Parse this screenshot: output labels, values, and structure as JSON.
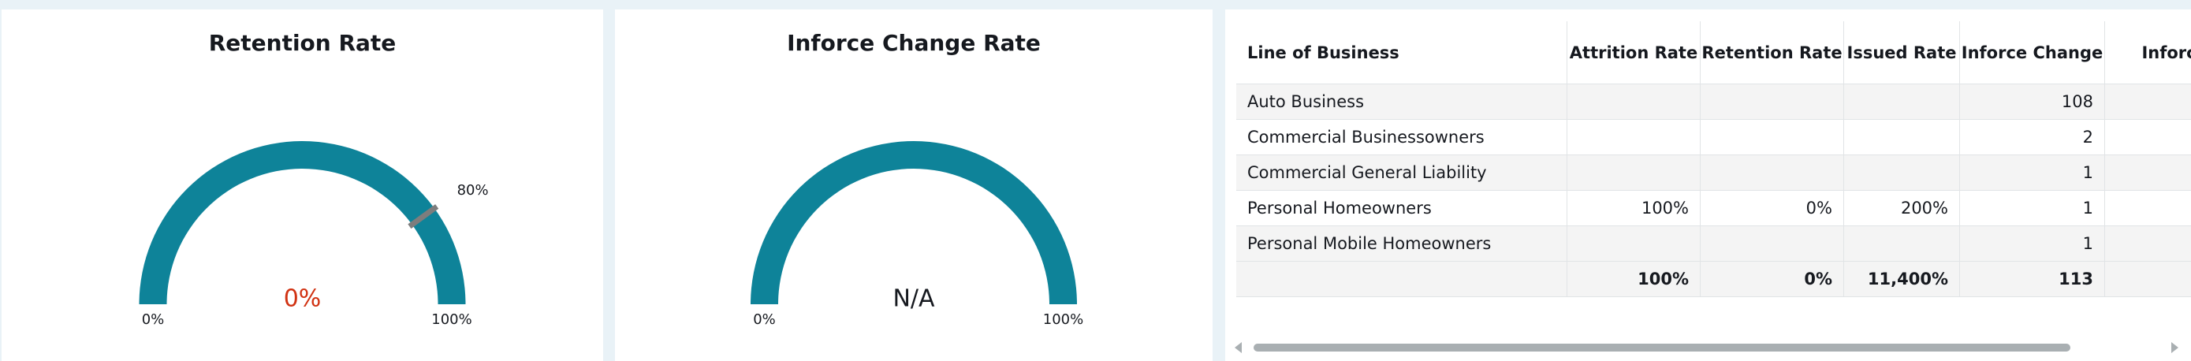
{
  "chart_data": [
    {
      "type": "gauge",
      "title": "Retention Rate",
      "value": 0,
      "value_label": "0%",
      "value_color": "#d13212",
      "ylim": [
        0,
        100
      ],
      "yticks": [
        {
          "value": 0,
          "label": "0%"
        },
        {
          "value": 100,
          "label": "100%"
        }
      ],
      "target": {
        "value": 80,
        "label": "80%"
      },
      "color": "#0e8399"
    },
    {
      "type": "gauge",
      "title": "Inforce Change Rate",
      "value": null,
      "value_label": "N/A",
      "value_color": "#16191f",
      "ylim": [
        0,
        100
      ],
      "yticks": [
        {
          "value": 0,
          "label": "0%"
        },
        {
          "value": 100,
          "label": "100%"
        }
      ],
      "color": "#0e8399"
    }
  ],
  "table": {
    "header": [
      "Line of Business",
      "Attrition Rate",
      "Retention Rate",
      "Issued Rate",
      "Inforce Change",
      "Inforce C"
    ],
    "rows": [
      [
        "Auto Business",
        null,
        null,
        null,
        "108",
        "-"
      ],
      [
        "Commercial Businessowners",
        null,
        null,
        null,
        "2",
        null
      ],
      [
        "Commercial General Liability",
        null,
        null,
        null,
        "1",
        null
      ],
      [
        "Personal Homeowners",
        "100%",
        "0%",
        "200%",
        "1",
        null
      ],
      [
        "Personal Mobile Homeowners",
        null,
        null,
        null,
        "1",
        null
      ]
    ],
    "total": [
      null,
      "100%",
      "0%",
      "11,400%",
      "113",
      null
    ]
  }
}
